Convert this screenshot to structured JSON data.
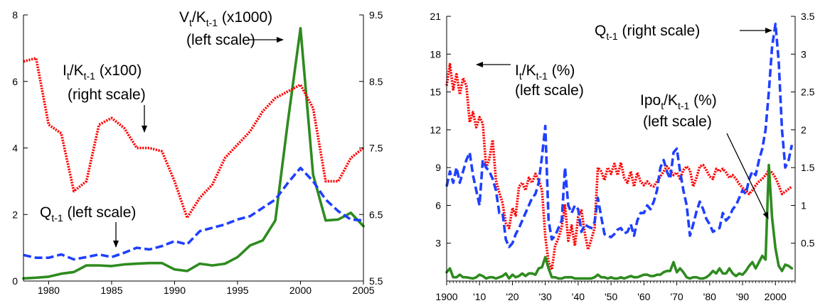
{
  "chart_data": [
    {
      "type": "line",
      "title": "",
      "x": {
        "range": [
          1978,
          2005
        ],
        "ticks": [
          1980,
          1985,
          1990,
          1995,
          2000,
          2005
        ],
        "tick_labels": [
          "1980",
          "1985",
          "1990",
          "1995",
          "2000",
          "2005"
        ]
      },
      "y_left": {
        "range": [
          0,
          8
        ],
        "ticks": [
          0,
          2,
          4,
          6,
          8
        ],
        "tick_labels": [
          "0",
          "2",
          "4",
          "6",
          "8"
        ]
      },
      "y_right": {
        "range": [
          5.5,
          9.5
        ],
        "ticks": [
          5.5,
          6.5,
          7.5,
          8.5,
          9.5
        ],
        "tick_labels": [
          "5.5",
          "6.5",
          "7.5",
          "8.5",
          "9.5"
        ]
      },
      "grid": false,
      "legend": "none",
      "series": [
        {
          "key": "vk",
          "axis": "left",
          "color": "#2e8b1f",
          "style": "solid",
          "x": [
            1978,
            1979,
            1980,
            1981,
            1982,
            1983,
            1984,
            1985,
            1986,
            1987,
            1988,
            1989,
            1990,
            1991,
            1992,
            1993,
            1994,
            1995,
            1996,
            1997,
            1998,
            1999,
            2000,
            2001,
            2002,
            2003,
            2004,
            2005
          ],
          "values": [
            0.08,
            0.1,
            0.13,
            0.22,
            0.27,
            0.47,
            0.47,
            0.45,
            0.5,
            0.52,
            0.54,
            0.54,
            0.35,
            0.3,
            0.52,
            0.47,
            0.52,
            0.72,
            1.07,
            1.22,
            1.82,
            4.8,
            7.6,
            3.2,
            1.82,
            1.85,
            2.05,
            1.65
          ]
        },
        {
          "key": "ik",
          "axis": "right",
          "color": "#ff0000",
          "style": "dotted",
          "x": [
            1978,
            1979,
            1980,
            1981,
            1982,
            1983,
            1984,
            1985,
            1986,
            1987,
            1988,
            1989,
            1990,
            1991,
            1992,
            1993,
            1994,
            1995,
            1996,
            1997,
            1998,
            1999,
            2000,
            2001,
            2002,
            2003,
            2004,
            2005
          ],
          "values": [
            8.8,
            8.85,
            7.85,
            7.72,
            6.85,
            7.0,
            7.85,
            7.95,
            7.8,
            7.5,
            7.5,
            7.45,
            7.0,
            6.45,
            6.75,
            6.95,
            7.35,
            7.55,
            7.75,
            8.05,
            8.25,
            8.35,
            8.45,
            8.1,
            7.0,
            7.0,
            7.35,
            7.5
          ]
        },
        {
          "key": "q",
          "axis": "left",
          "color": "#1f3fff",
          "style": "dashed",
          "x": [
            1978,
            1979,
            1980,
            1981,
            1982,
            1983,
            1984,
            1985,
            1986,
            1987,
            1988,
            1989,
            1990,
            1991,
            1992,
            1993,
            1994,
            1995,
            1996,
            1997,
            1998,
            1999,
            2000,
            2001,
            2002,
            2003,
            2004,
            2005
          ],
          "values": [
            0.78,
            0.7,
            0.7,
            0.8,
            0.65,
            0.72,
            0.8,
            0.72,
            0.85,
            1.0,
            0.95,
            1.05,
            1.2,
            1.1,
            1.5,
            1.6,
            1.7,
            1.85,
            1.95,
            2.2,
            2.45,
            2.95,
            3.4,
            3.0,
            2.45,
            2.1,
            1.85,
            1.82
          ]
        }
      ],
      "annotations": {
        "vk": {
          "main": "V",
          "sub1": "t",
          "mid": "/K",
          "sub2": "t-1",
          "tail": " (x1000)",
          "line2": "(left scale)"
        },
        "ik": {
          "main": "I",
          "sub1": "t",
          "mid": "/K",
          "sub2": "t-1",
          "tail": " (x100)",
          "line2": "(right scale)"
        },
        "q": {
          "main": "Q",
          "sub1": "t-1",
          "tail": " (left scale)"
        }
      }
    },
    {
      "type": "line",
      "title": "",
      "x": {
        "range": [
          1900,
          2006
        ],
        "ticks": [
          1900,
          1910,
          1920,
          1930,
          1940,
          1950,
          1960,
          1970,
          1980,
          1990,
          2000
        ],
        "tick_labels": [
          "1900",
          "'10",
          "'20",
          "'30",
          "'40",
          "'50",
          "'60",
          "'70",
          "'80",
          "'90",
          "2000"
        ]
      },
      "y_left": {
        "range": [
          0,
          21
        ],
        "ticks": [
          3,
          6,
          9,
          12,
          15,
          18,
          21
        ],
        "tick_labels": [
          "3",
          "6",
          "9",
          "12",
          "15",
          "18",
          "21"
        ]
      },
      "y_right": {
        "range": [
          0,
          3.5
        ],
        "ticks": [
          0.5,
          1,
          1.5,
          2,
          2.5,
          3,
          3.5
        ],
        "tick_labels": [
          "0.5",
          "1",
          "1.5",
          "2",
          "2.5",
          "3",
          "3.5"
        ]
      },
      "grid": false,
      "legend": "none",
      "series": [
        {
          "key": "ik",
          "axis": "left",
          "color": "#ff0000",
          "style": "dotted",
          "x": [
            1900,
            1901,
            1902,
            1903,
            1904,
            1905,
            1906,
            1907,
            1908,
            1909,
            1910,
            1911,
            1912,
            1913,
            1914,
            1915,
            1916,
            1917,
            1918,
            1919,
            1920,
            1921,
            1922,
            1923,
            1924,
            1925,
            1926,
            1927,
            1928,
            1929,
            1930,
            1931,
            1932,
            1933,
            1934,
            1935,
            1936,
            1937,
            1938,
            1939,
            1940,
            1941,
            1942,
            1943,
            1944,
            1945,
            1946,
            1947,
            1948,
            1949,
            1950,
            1951,
            1952,
            1953,
            1954,
            1955,
            1956,
            1957,
            1958,
            1959,
            1960,
            1961,
            1962,
            1963,
            1964,
            1965,
            1966,
            1967,
            1968,
            1969,
            1970,
            1971,
            1972,
            1973,
            1974,
            1975,
            1976,
            1977,
            1978,
            1979,
            1980,
            1981,
            1982,
            1983,
            1984,
            1985,
            1986,
            1987,
            1988,
            1989,
            1990,
            1991,
            1992,
            1993,
            1994,
            1995,
            1996,
            1997,
            1998,
            1999,
            2000,
            2001,
            2002,
            2003,
            2004,
            2005
          ],
          "values": [
            15.5,
            17.2,
            15.2,
            16.4,
            14.8,
            16.1,
            15.5,
            12.6,
            13.4,
            12.2,
            13.0,
            12.5,
            9.0,
            9.7,
            11.2,
            8.0,
            7.0,
            6.2,
            4.6,
            4.2,
            5.8,
            5.2,
            7.5,
            7.8,
            7.2,
            8.2,
            7.8,
            8.5,
            8.0,
            7.2,
            3.5,
            1.5,
            0.9,
            2.8,
            3.4,
            4.3,
            6.0,
            3.2,
            4.4,
            2.8,
            5.1,
            5.6,
            3.8,
            2.5,
            3.3,
            4.2,
            9.0,
            8.7,
            8.0,
            9.0,
            8.5,
            9.3,
            8.4,
            9.4,
            8.2,
            7.8,
            8.7,
            7.5,
            8.6,
            7.9,
            7.6,
            7.9,
            7.6,
            7.5,
            7.9,
            8.3,
            8.7,
            9.1,
            8.8,
            8.4,
            8.6,
            8.1,
            8.8,
            9.1,
            8.8,
            7.5,
            8.2,
            9.1,
            9.2,
            8.8,
            8.3,
            8.1,
            8.9,
            8.7,
            8.9,
            8.6,
            8.2,
            8.4,
            8.1,
            7.7,
            7.4,
            7.2,
            6.9,
            7.2,
            7.6,
            7.9,
            8.1,
            8.4,
            8.8,
            8.6,
            8.2,
            7.6,
            6.9,
            7.1,
            7.3,
            7.5
          ]
        },
        {
          "key": "q",
          "axis": "right",
          "color": "#1f3fff",
          "style": "dashed",
          "x": [
            1900,
            1901,
            1902,
            1903,
            1904,
            1905,
            1906,
            1907,
            1908,
            1909,
            1910,
            1911,
            1912,
            1913,
            1914,
            1915,
            1916,
            1917,
            1918,
            1919,
            1920,
            1921,
            1922,
            1923,
            1924,
            1925,
            1926,
            1927,
            1928,
            1929,
            1930,
            1931,
            1932,
            1933,
            1934,
            1935,
            1936,
            1937,
            1938,
            1939,
            1940,
            1941,
            1942,
            1943,
            1944,
            1945,
            1946,
            1947,
            1948,
            1949,
            1950,
            1951,
            1952,
            1953,
            1954,
            1955,
            1956,
            1957,
            1958,
            1959,
            1960,
            1961,
            1962,
            1963,
            1964,
            1965,
            1966,
            1967,
            1968,
            1969,
            1970,
            1971,
            1972,
            1973,
            1974,
            1975,
            1976,
            1977,
            1978,
            1979,
            1980,
            1981,
            1982,
            1983,
            1984,
            1985,
            1986,
            1987,
            1988,
            1989,
            1990,
            1991,
            1992,
            1993,
            1994,
            1995,
            1996,
            1997,
            1998,
            1999,
            2000,
            2001,
            2002,
            2003,
            2004,
            2005
          ],
          "values": [
            1.25,
            1.45,
            1.3,
            1.5,
            1.3,
            1.45,
            1.6,
            1.7,
            1.4,
            1.2,
            1.0,
            1.6,
            1.5,
            1.45,
            1.35,
            1.2,
            0.9,
            0.9,
            0.55,
            0.45,
            0.5,
            0.62,
            0.7,
            0.8,
            0.9,
            1.0,
            1.1,
            1.15,
            1.3,
            1.65,
            2.05,
            0.8,
            0.55,
            0.6,
            0.7,
            0.8,
            1.5,
            1.0,
            0.9,
            1.0,
            0.95,
            0.65,
            0.75,
            0.72,
            0.7,
            0.78,
            1.1,
            0.85,
            0.62,
            0.6,
            0.58,
            0.62,
            0.68,
            0.7,
            0.63,
            0.65,
            0.75,
            0.6,
            0.8,
            0.9,
            0.9,
            1.0,
            0.95,
            1.05,
            1.2,
            1.5,
            1.6,
            1.45,
            1.35,
            1.7,
            1.75,
            1.45,
            1.2,
            1.0,
            0.6,
            0.75,
            0.92,
            1.05,
            0.95,
            0.82,
            0.75,
            0.65,
            0.68,
            0.7,
            0.9,
            0.8,
            0.85,
            0.95,
            1.0,
            1.1,
            1.2,
            1.15,
            1.35,
            1.45,
            1.4,
            1.6,
            1.75,
            2.0,
            2.5,
            3.1,
            3.4,
            2.9,
            2.0,
            1.5,
            1.6,
            1.8
          ]
        },
        {
          "key": "ipo",
          "axis": "left",
          "color": "#2e8b1f",
          "style": "solid",
          "x": [
            1900,
            1901,
            1902,
            1903,
            1904,
            1905,
            1906,
            1907,
            1908,
            1909,
            1910,
            1911,
            1912,
            1913,
            1914,
            1915,
            1916,
            1917,
            1918,
            1919,
            1920,
            1921,
            1922,
            1923,
            1924,
            1925,
            1926,
            1927,
            1928,
            1929,
            1930,
            1931,
            1932,
            1933,
            1934,
            1935,
            1936,
            1937,
            1938,
            1939,
            1940,
            1941,
            1942,
            1943,
            1944,
            1945,
            1946,
            1947,
            1948,
            1949,
            1950,
            1951,
            1952,
            1953,
            1954,
            1955,
            1956,
            1957,
            1958,
            1959,
            1960,
            1961,
            1962,
            1963,
            1964,
            1965,
            1966,
            1967,
            1968,
            1969,
            1970,
            1971,
            1972,
            1973,
            1974,
            1975,
            1976,
            1977,
            1978,
            1979,
            1980,
            1981,
            1982,
            1983,
            1984,
            1985,
            1986,
            1987,
            1988,
            1989,
            1990,
            1991,
            1992,
            1993,
            1994,
            1995,
            1996,
            1997,
            1998,
            1999,
            2000,
            2001,
            2002,
            2003,
            2004,
            2005
          ],
          "values": [
            0.7,
            1.0,
            0.3,
            0.3,
            0.5,
            0.3,
            0.3,
            0.25,
            0.2,
            0.3,
            0.5,
            0.4,
            0.2,
            0.3,
            0.3,
            0.2,
            0.3,
            0.4,
            0.6,
            0.2,
            0.5,
            0.3,
            0.4,
            0.6,
            0.4,
            0.6,
            0.6,
            0.5,
            1.0,
            1.1,
            1.9,
            1.0,
            0.3,
            0.3,
            0.2,
            0.2,
            0.3,
            0.3,
            0.3,
            0.2,
            0.2,
            0.2,
            0.2,
            0.2,
            0.2,
            0.3,
            0.5,
            0.3,
            0.3,
            0.2,
            0.3,
            0.2,
            0.2,
            0.3,
            0.2,
            0.3,
            0.4,
            0.3,
            0.3,
            0.4,
            0.5,
            0.5,
            0.4,
            0.4,
            0.5,
            0.5,
            0.7,
            0.8,
            0.8,
            1.5,
            0.7,
            1.0,
            0.7,
            0.3,
            0.2,
            0.3,
            0.3,
            0.2,
            0.2,
            0.3,
            0.5,
            0.8,
            0.6,
            1.0,
            0.6,
            0.6,
            1.0,
            0.6,
            0.4,
            0.6,
            0.5,
            0.8,
            1.2,
            1.5,
            1.0,
            1.5,
            2.0,
            1.7,
            9.2,
            5.0,
            2.6,
            1.2,
            0.8,
            1.3,
            1.2,
            1.0
          ]
        }
      ],
      "annotations": {
        "q": {
          "main": "Q",
          "sub1": "t-1",
          "tail": " (right scale)"
        },
        "ik": {
          "main": "I",
          "sub1": "t",
          "mid": "/K",
          "sub2": "t-1",
          "tail": " (%)",
          "line2": "(left scale)"
        },
        "ipo": {
          "main": "Ipo",
          "sub1": "t",
          "mid": "/K",
          "sub2": "t-1",
          "tail": " (%)",
          "line2": "(left scale)"
        }
      }
    }
  ]
}
